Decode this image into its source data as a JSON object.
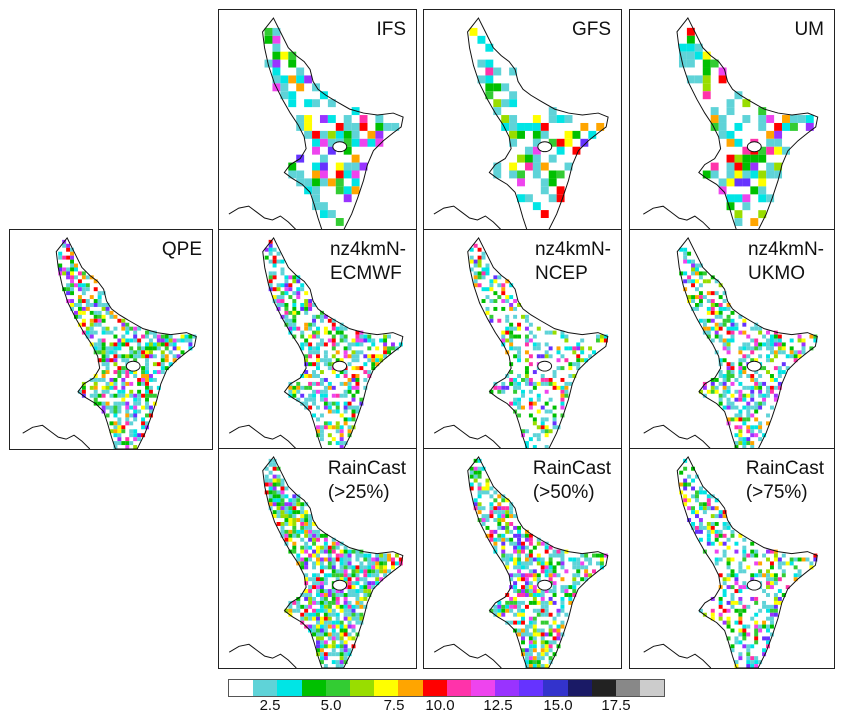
{
  "panels": [
    {
      "id": "ifs",
      "label": "IFS",
      "density": 0.55,
      "coarse": true
    },
    {
      "id": "gfs",
      "label": "GFS",
      "density": 0.45,
      "coarse": true
    },
    {
      "id": "um",
      "label": "UM",
      "density": 0.55,
      "coarse": true
    },
    {
      "id": "qpe",
      "label": "QPE",
      "density": 0.6,
      "coarse": false
    },
    {
      "id": "nz4kmn-ecmwf",
      "label": "nz4kmN-\nECMWF",
      "density": 0.55,
      "coarse": false
    },
    {
      "id": "nz4kmn-ncep",
      "label": "nz4kmN-\nNCEP",
      "density": 0.4,
      "coarse": false
    },
    {
      "id": "nz4kmn-ukmo",
      "label": "nz4kmN-\nUKMO",
      "density": 0.5,
      "coarse": false
    },
    {
      "id": "raincast-25",
      "label": "RainCast\n(>25%)",
      "density": 0.75,
      "coarse": false
    },
    {
      "id": "raincast-50",
      "label": "RainCast\n(>50%)",
      "density": 0.65,
      "coarse": false
    },
    {
      "id": "raincast-75",
      "label": "RainCast\n(>75%)",
      "density": 0.45,
      "coarse": false
    }
  ],
  "colorbar": {
    "colors": [
      "#ffffff",
      "#5fd3d8",
      "#00e5e5",
      "#00c000",
      "#33cc33",
      "#99dd00",
      "#ffff00",
      "#ffa500",
      "#ff0000",
      "#ff33aa",
      "#ee44ee",
      "#9933ff",
      "#6633ff",
      "#3333cc",
      "#1a1a66",
      "#222222",
      "#888888",
      "#cccccc",
      "#eeeeee",
      "#f2c9a8",
      "#d8a27a",
      "#b9784f",
      "#8b4a1e",
      "#5a2d0c"
    ],
    "tick_labels": [
      "2.5",
      "5.0",
      "7.5",
      "10.0",
      "12.5",
      "15.0",
      "17.5"
    ]
  }
}
